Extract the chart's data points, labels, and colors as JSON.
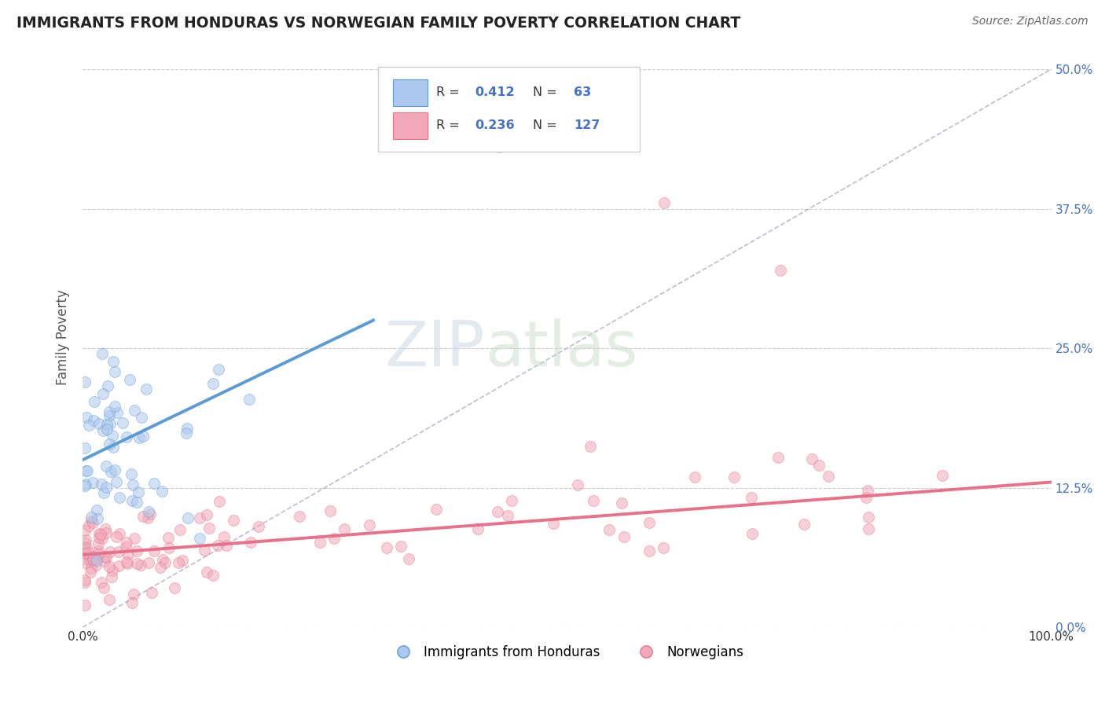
{
  "title": "IMMIGRANTS FROM HONDURAS VS NORWEGIAN FAMILY POVERTY CORRELATION CHART",
  "source": "Source: ZipAtlas.com",
  "ylabel": "Family Poverty",
  "ytick_vals": [
    0.0,
    12.5,
    25.0,
    37.5,
    50.0
  ],
  "ytick_labels": [
    "0.0%",
    "12.5%",
    "25.0%",
    "37.5%",
    "50.0%"
  ],
  "xtick_vals": [
    0.0,
    100.0
  ],
  "xtick_labels": [
    "0.0%",
    "100.0%"
  ],
  "blue_R": "0.412",
  "blue_N": "63",
  "pink_R": "0.236",
  "pink_N": "127",
  "blue_line_x": [
    0.0,
    30.0
  ],
  "blue_line_y": [
    15.0,
    27.5
  ],
  "pink_line_x": [
    0.0,
    100.0
  ],
  "pink_line_y": [
    6.5,
    13.0
  ],
  "dashed_line_x": [
    0.0,
    100.0
  ],
  "dashed_line_y": [
    0.0,
    50.0
  ],
  "xmin": 0.0,
  "xmax": 100.0,
  "ymin": 0.0,
  "ymax": 52.0,
  "scatter_size": 100,
  "scatter_alpha": 0.55,
  "blue_color": "#5b9bd5",
  "pink_color": "#e8718a",
  "blue_fill": "#adc8ef",
  "pink_fill": "#f2a8b8",
  "title_color": "#222222",
  "source_color": "#666666",
  "axis_label_color": "#555555",
  "tick_color": "#4472c4",
  "watermark_color": "#d0dde8",
  "grid_color": "#cccccc",
  "legend_label_blue": "Immigrants from Honduras",
  "legend_label_pink": "Norwegians"
}
